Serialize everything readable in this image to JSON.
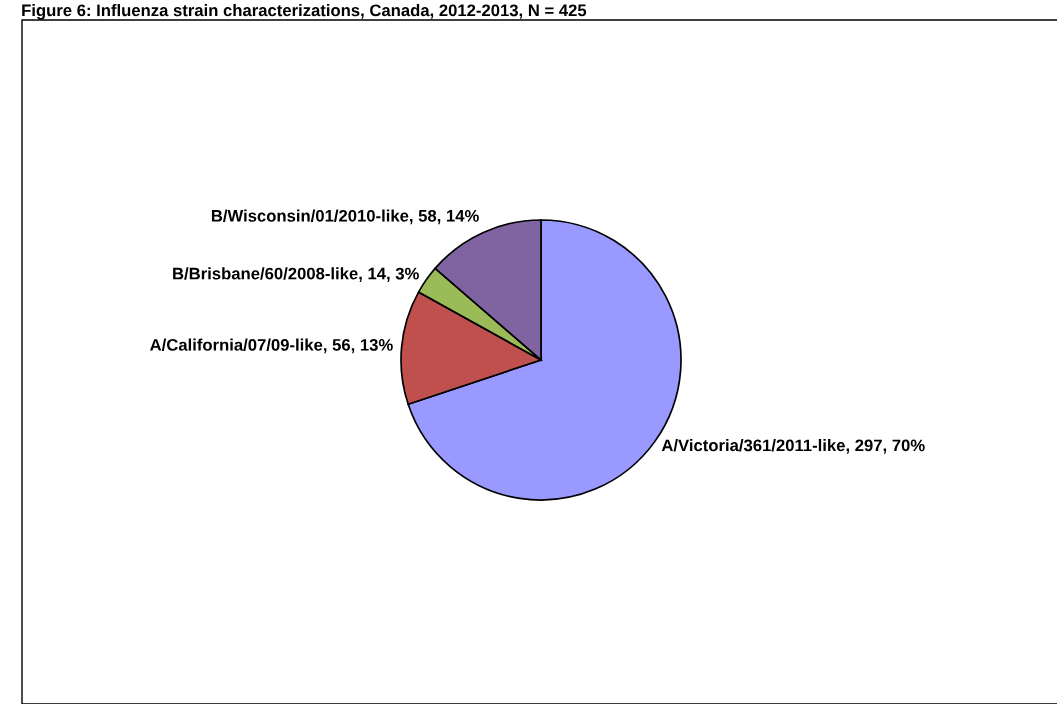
{
  "chart_data": {
    "type": "pie",
    "title": "Figure 6: Influenza strain characterizations, Canada, 2012-2013, N = 425",
    "categories": [
      "A/Victoria/361/2011-like",
      "A/California/07/09-like",
      "B/Brisbane/60/2008-like",
      "B/Wisconsin/01/2010-like"
    ],
    "values": [
      297,
      56,
      14,
      58
    ],
    "value_labels": [
      "297, 70%",
      "56, 13%",
      "14, 3%",
      "58, 14%"
    ],
    "colors": [
      "#9999ff",
      "#c0504d",
      "#9bbb59",
      "#8064a2"
    ],
    "legend": false
  }
}
